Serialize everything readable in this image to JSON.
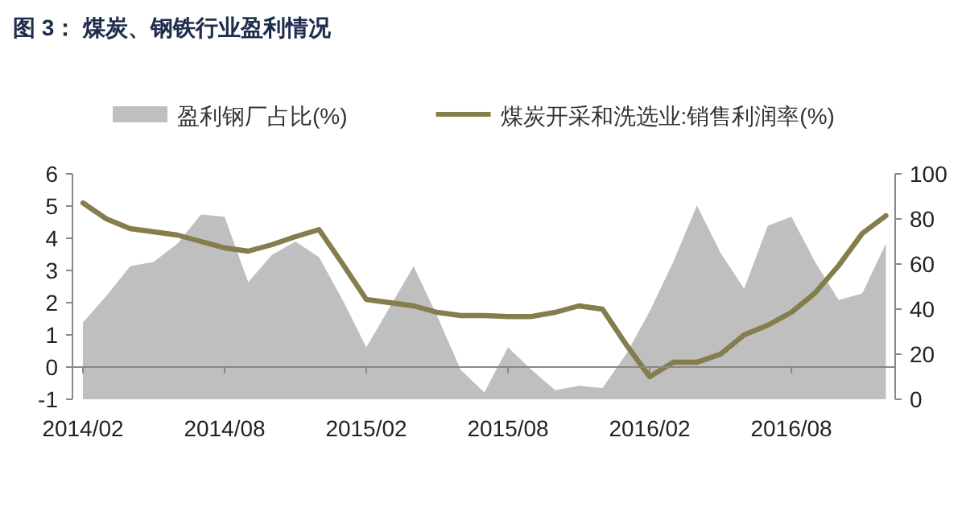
{
  "chart_data": {
    "type": "line",
    "title": "图 3：    煤炭、钢铁行业盈利情况",
    "x": [
      "2014-02",
      "2014-03",
      "2014-04",
      "2014-05",
      "2014-06",
      "2014-07",
      "2014-08",
      "2014-09",
      "2014-10",
      "2014-11",
      "2014-12",
      "2015-01",
      "2015-02",
      "2015-03",
      "2015-04",
      "2015-05",
      "2015-06",
      "2015-07",
      "2015-08",
      "2015-09",
      "2015-10",
      "2015-11",
      "2015-12",
      "2016-01",
      "2016-02",
      "2016-03",
      "2016-04",
      "2016-05",
      "2016-06",
      "2016-07",
      "2016-08",
      "2016-09",
      "2016-10",
      "2016-11",
      "2016-12"
    ],
    "series": [
      {
        "name": "盈利钢厂占比(%)",
        "type": "area",
        "axis": "y2",
        "color": "#bfbfbf",
        "values": [
          34,
          46,
          59,
          61,
          69,
          82,
          81,
          52,
          64,
          70,
          63,
          44,
          23,
          41,
          59,
          37,
          13,
          3,
          23,
          13,
          4,
          6,
          5,
          20,
          39,
          61,
          86,
          65,
          49,
          77,
          81,
          61,
          44,
          47,
          69
        ]
      },
      {
        "name": "煤炭开采和洗选业:销售利润率(%)",
        "color": "#857e4c",
        "values": [
          5.1,
          4.6,
          4.3,
          4.2,
          4.1,
          3.9,
          3.7,
          3.6,
          3.8,
          4.05,
          4.27,
          3.2,
          2.1,
          2.0,
          1.9,
          1.7,
          1.6,
          1.6,
          1.57,
          1.57,
          1.7,
          1.9,
          1.8,
          0.7,
          -0.3,
          0.15,
          0.15,
          0.4,
          1.0,
          1.3,
          1.7,
          2.3,
          3.15,
          4.15,
          4.7
        ]
      }
    ],
    "xlim": [
      "2014-01-18",
      "2016-12-13"
    ],
    "xticks": [
      {
        "value": "2014-02",
        "label": "2014/02"
      },
      {
        "value": "2014-08",
        "label": "2014/08"
      },
      {
        "value": "2015-02",
        "label": "2015/02"
      },
      {
        "value": "2015-08",
        "label": "2015/08"
      },
      {
        "value": "2016-02",
        "label": "2016/02"
      },
      {
        "value": "2016-08",
        "label": "2016/08"
      }
    ],
    "ylim": [
      -1,
      6
    ],
    "yticks": [
      -1,
      0,
      1,
      2,
      3,
      4,
      5,
      6
    ],
    "y2lim": [
      0,
      100
    ],
    "y2ticks": [
      0,
      20,
      40,
      60,
      80,
      100
    ],
    "legend": "top",
    "grid": false
  }
}
